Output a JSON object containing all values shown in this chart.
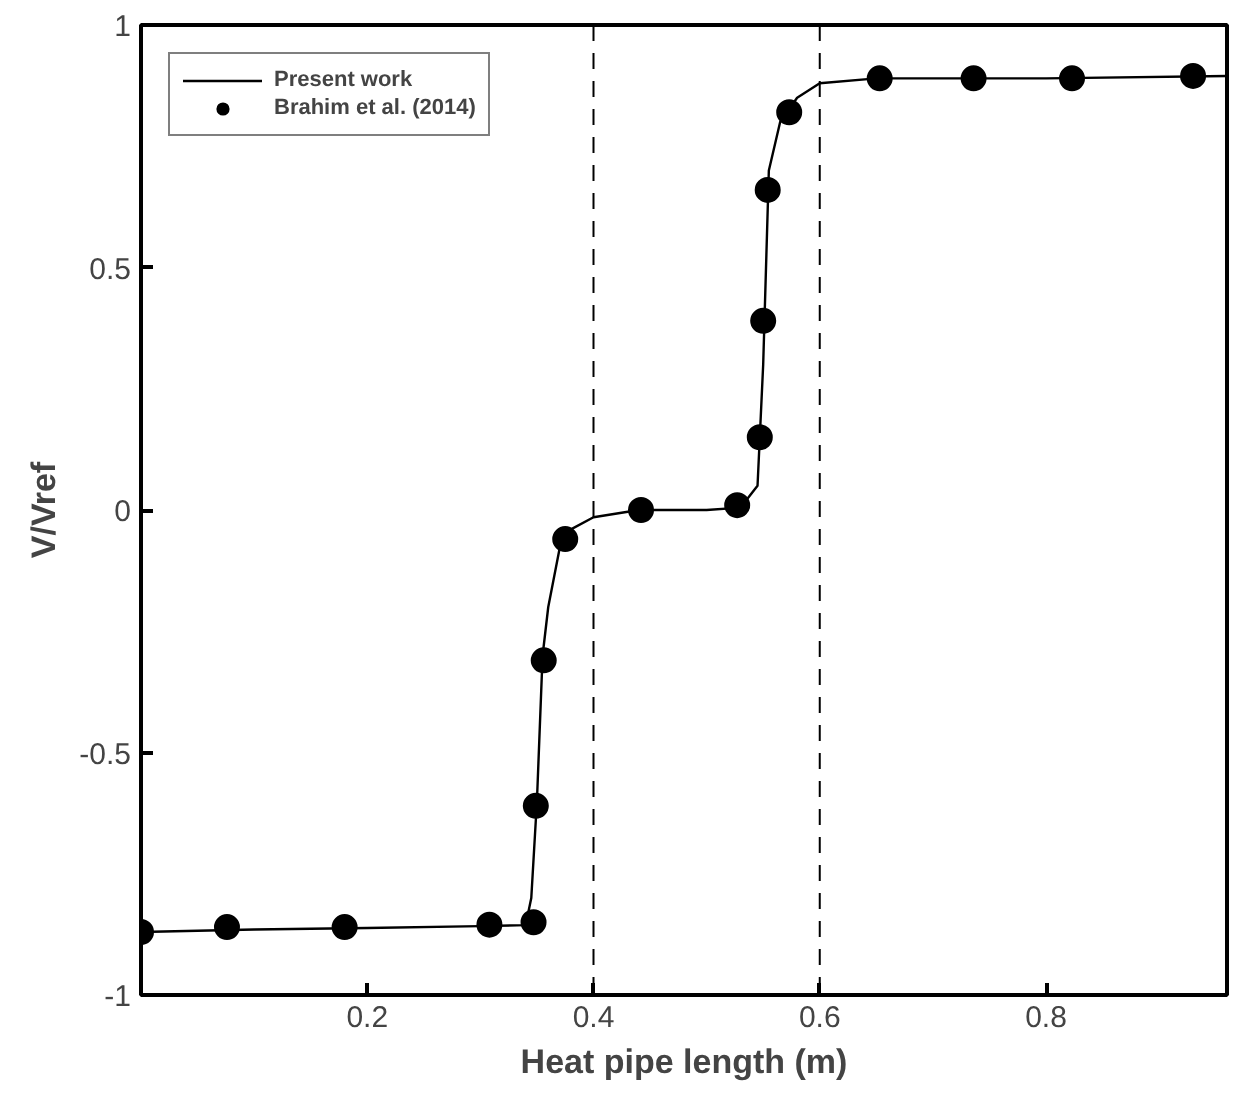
{
  "chart_data": {
    "type": "line",
    "xlabel": "Heat pipe length (m)",
    "ylabel": "V/Vref",
    "xlim": [
      0,
      0.96
    ],
    "ylim": [
      -1,
      1
    ],
    "xticks": [
      0.2,
      0.4,
      0.6,
      0.8
    ],
    "yticks": [
      -1,
      -0.5,
      0,
      0.5,
      1
    ],
    "series": [
      {
        "name": "Present work",
        "color": "#000000",
        "marker": "none",
        "x": [
          0,
          0.1,
          0.2,
          0.3,
          0.34,
          0.345,
          0.35,
          0.355,
          0.36,
          0.37,
          0.38,
          0.4,
          0.44,
          0.5,
          0.53,
          0.545,
          0.55,
          0.555,
          0.565,
          0.58,
          0.6,
          0.65,
          0.8,
          0.96
        ],
        "values": [
          -0.87,
          -0.865,
          -0.862,
          -0.858,
          -0.856,
          -0.8,
          -0.6,
          -0.3,
          -0.2,
          -0.08,
          -0.04,
          -0.015,
          0,
          0,
          0.005,
          0.05,
          0.3,
          0.7,
          0.8,
          0.85,
          0.88,
          0.89,
          0.89,
          0.895
        ]
      },
      {
        "name": "Brahim et al. (2014)",
        "type": "scatter",
        "color": "#000000",
        "marker": "circle",
        "x": [
          0,
          0.076,
          0.18,
          0.308,
          0.347,
          0.349,
          0.356,
          0.375,
          0.442,
          0.527,
          0.547,
          0.55,
          0.554,
          0.573,
          0.653,
          0.736,
          0.823,
          0.93
        ],
        "values": [
          -0.87,
          -0.86,
          -0.86,
          -0.855,
          -0.85,
          -0.61,
          -0.31,
          -0.06,
          0,
          0.01,
          0.15,
          0.39,
          0.66,
          0.82,
          0.89,
          0.89,
          0.89,
          0.895
        ]
      }
    ],
    "ref_lines": [
      {
        "axis": "x",
        "value": 0.4,
        "color": "#000000",
        "line_style": "dashed"
      },
      {
        "axis": "x",
        "value": 0.6,
        "color": "#000000",
        "line_style": "dashed"
      }
    ],
    "grid": false,
    "legend": "top left"
  }
}
